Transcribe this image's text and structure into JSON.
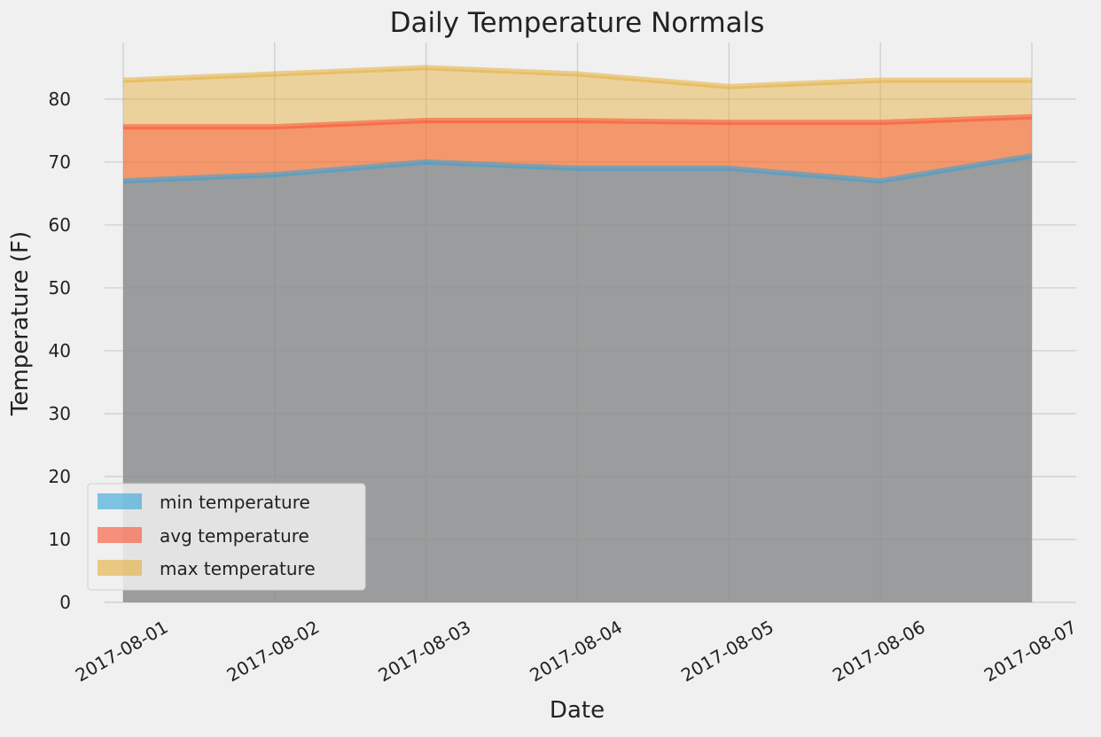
{
  "chart_data": {
    "type": "area",
    "title": "Daily Temperature Normals",
    "xlabel": "Date",
    "ylabel": "Temperature (F)",
    "categories": [
      "2017-08-01",
      "2017-08-02",
      "2017-08-03",
      "2017-08-04",
      "2017-08-05",
      "2017-08-06",
      "2017-08-07"
    ],
    "ylim": [
      0,
      89
    ],
    "yticks": [
      0,
      10,
      20,
      30,
      40,
      50,
      60,
      70,
      80
    ],
    "grid": true,
    "stacked": false,
    "legend_position": "lower-left",
    "series": [
      {
        "name": "min temperature",
        "values": [
          67,
          68,
          70,
          69,
          69,
          67,
          71
        ],
        "color": "#30a2da"
      },
      {
        "name": "avg temperature",
        "values": [
          75.6,
          75.6,
          76.6,
          76.6,
          76.3,
          76.3,
          77.2
        ],
        "color": "#fc4f30"
      },
      {
        "name": "max temperature",
        "values": [
          83,
          84,
          85,
          84,
          82,
          83,
          83
        ],
        "color": "#e5ae38"
      }
    ]
  }
}
